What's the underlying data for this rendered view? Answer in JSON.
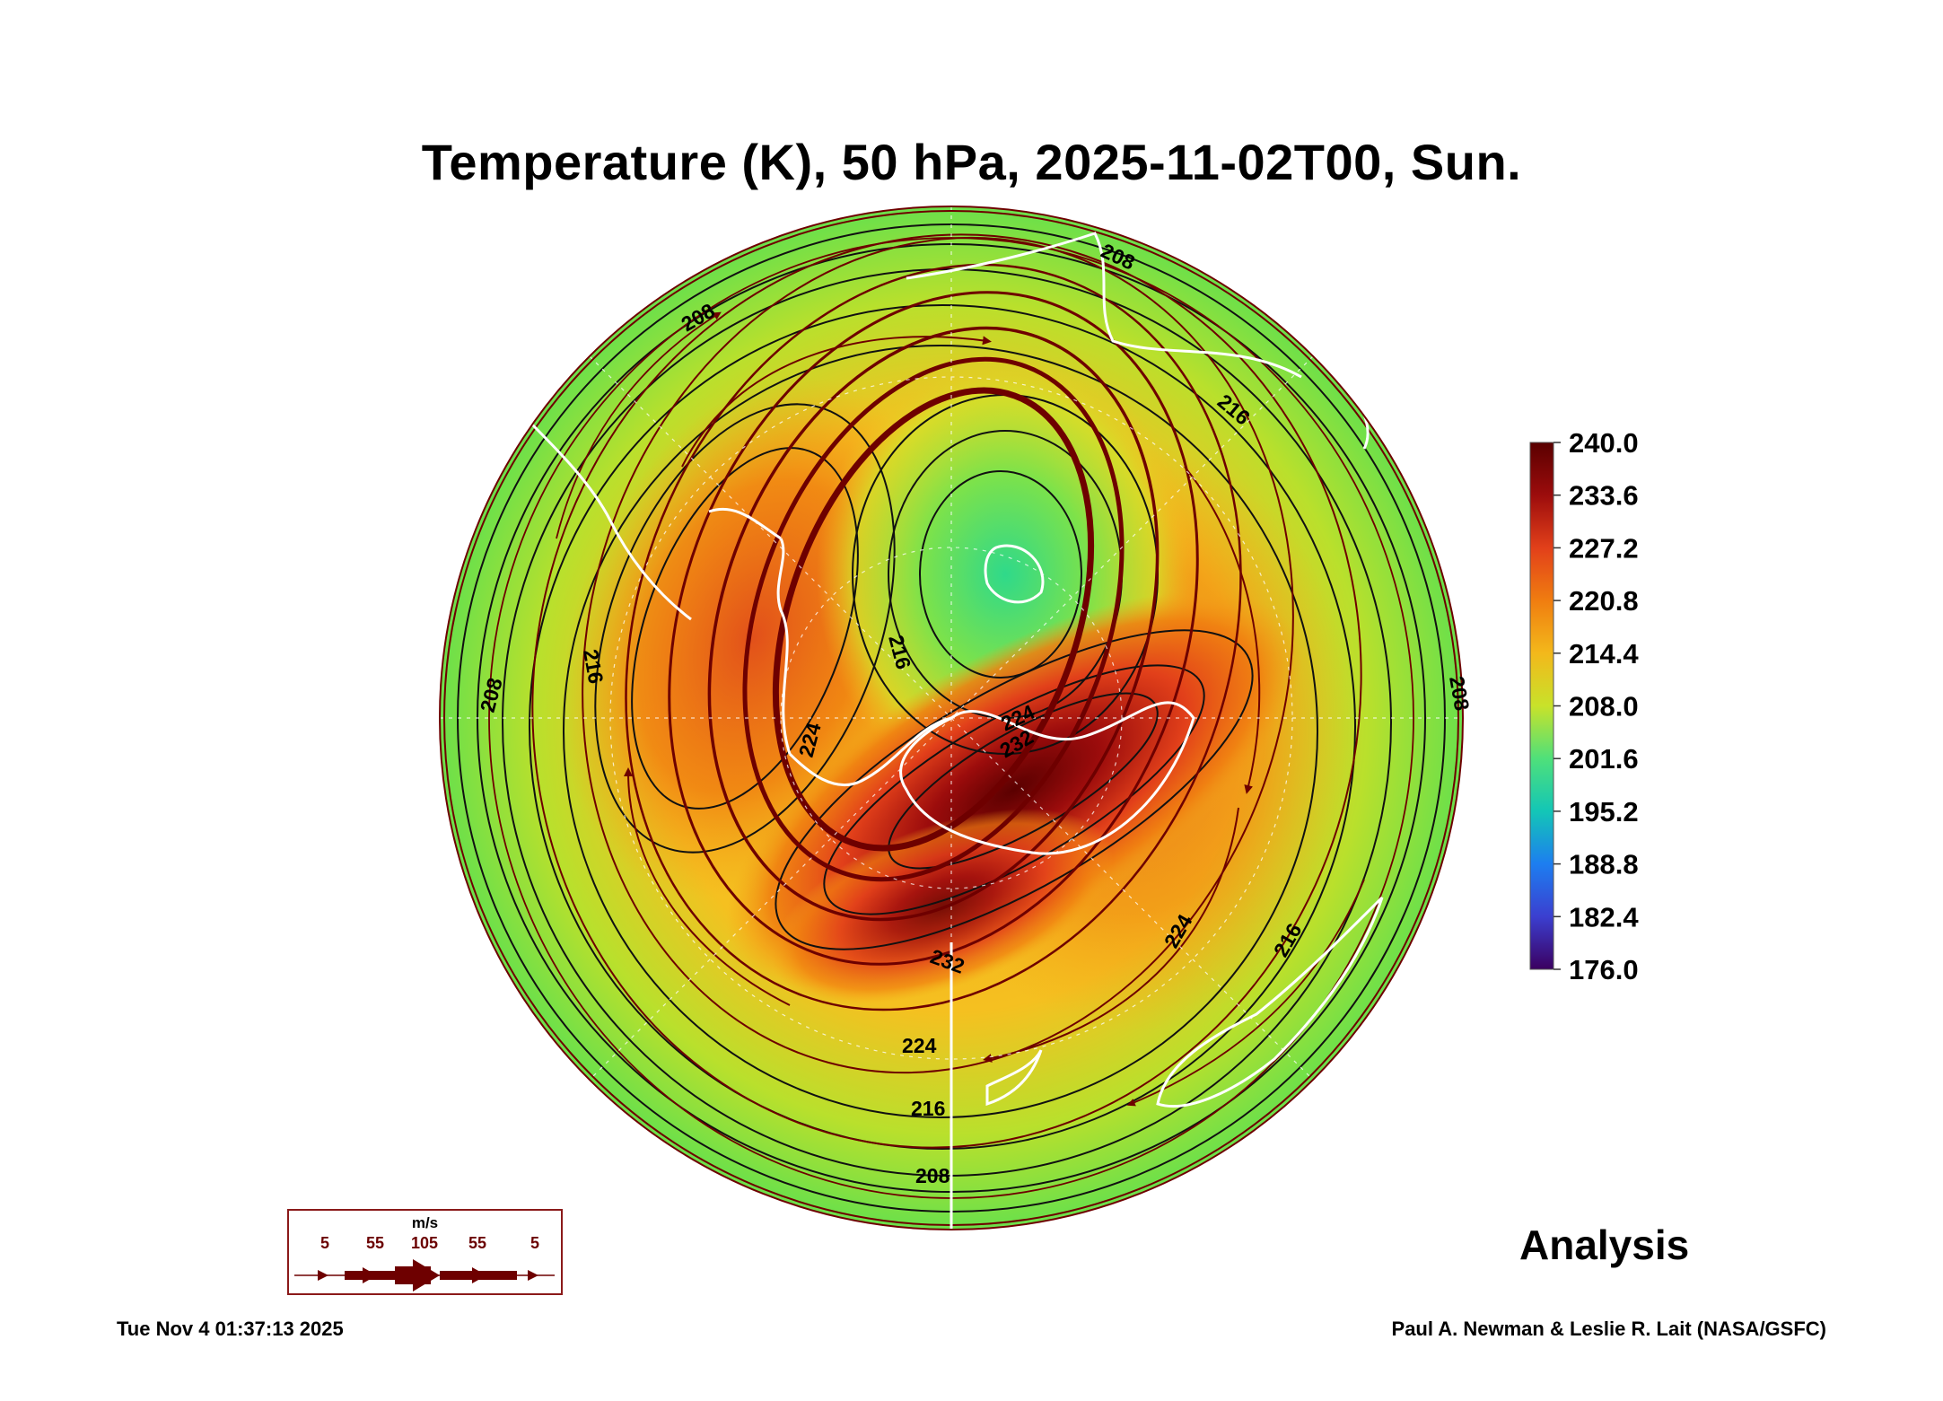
{
  "title": "Temperature (K), 50 hPa, 2025-11-02T00, Sun.",
  "colorbar": {
    "labels": [
      "240.0",
      "233.6",
      "227.2",
      "220.8",
      "214.4",
      "208.0",
      "201.6",
      "195.2",
      "188.8",
      "182.4",
      "176.0"
    ],
    "gradient": [
      "#5a0000",
      "#9c0c0c",
      "#e2401a",
      "#f07d10",
      "#f3b81b",
      "#c8e22a",
      "#4fe07a",
      "#13c6b6",
      "#1d7ef0",
      "#3b3fd0",
      "#3b0060"
    ]
  },
  "contour_labels": [
    "208",
    "208",
    "208",
    "208",
    "208",
    "216",
    "216",
    "216",
    "216",
    "216",
    "224",
    "224",
    "224",
    "224",
    "232",
    "232"
  ],
  "wind_legend": {
    "unit": "m/s",
    "values": [
      "5",
      "55",
      "105",
      "55",
      "5"
    ]
  },
  "analysis_label": "Analysis",
  "timestamp": "Tue Nov  4 01:37:13 2025",
  "credit": "Paul A. Newman & Leslie R. Lait (NASA/GSFC)",
  "colors": {
    "jet": "#6e0000",
    "coast": "#ffffff",
    "contour": "#111111"
  }
}
